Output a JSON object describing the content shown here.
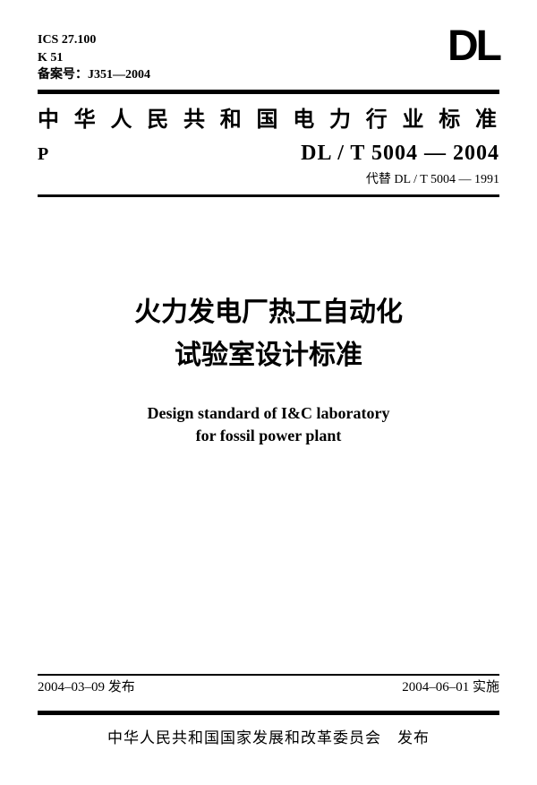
{
  "header": {
    "ics": "ICS 27.100",
    "k": "K 51",
    "filing": "备案号：J351—2004",
    "logo": "DL"
  },
  "org_title": "中华人民共和国电力行业标准",
  "code_row": {
    "p_mark": "P",
    "std_code": "DL / T  5004 — 2004",
    "replaces": "代替 DL / T  5004 — 1991"
  },
  "title": {
    "zh_line1": "火力发电厂热工自动化",
    "zh_line2": "试验室设计标准",
    "en_line1": "Design standard of I&C laboratory",
    "en_line2": "for fossil power plant"
  },
  "dates": {
    "issued": "2004–03–09 发布",
    "effective": "2004–06–01 实施"
  },
  "publisher": "中华人民共和国国家发展和改革委员会　发布"
}
